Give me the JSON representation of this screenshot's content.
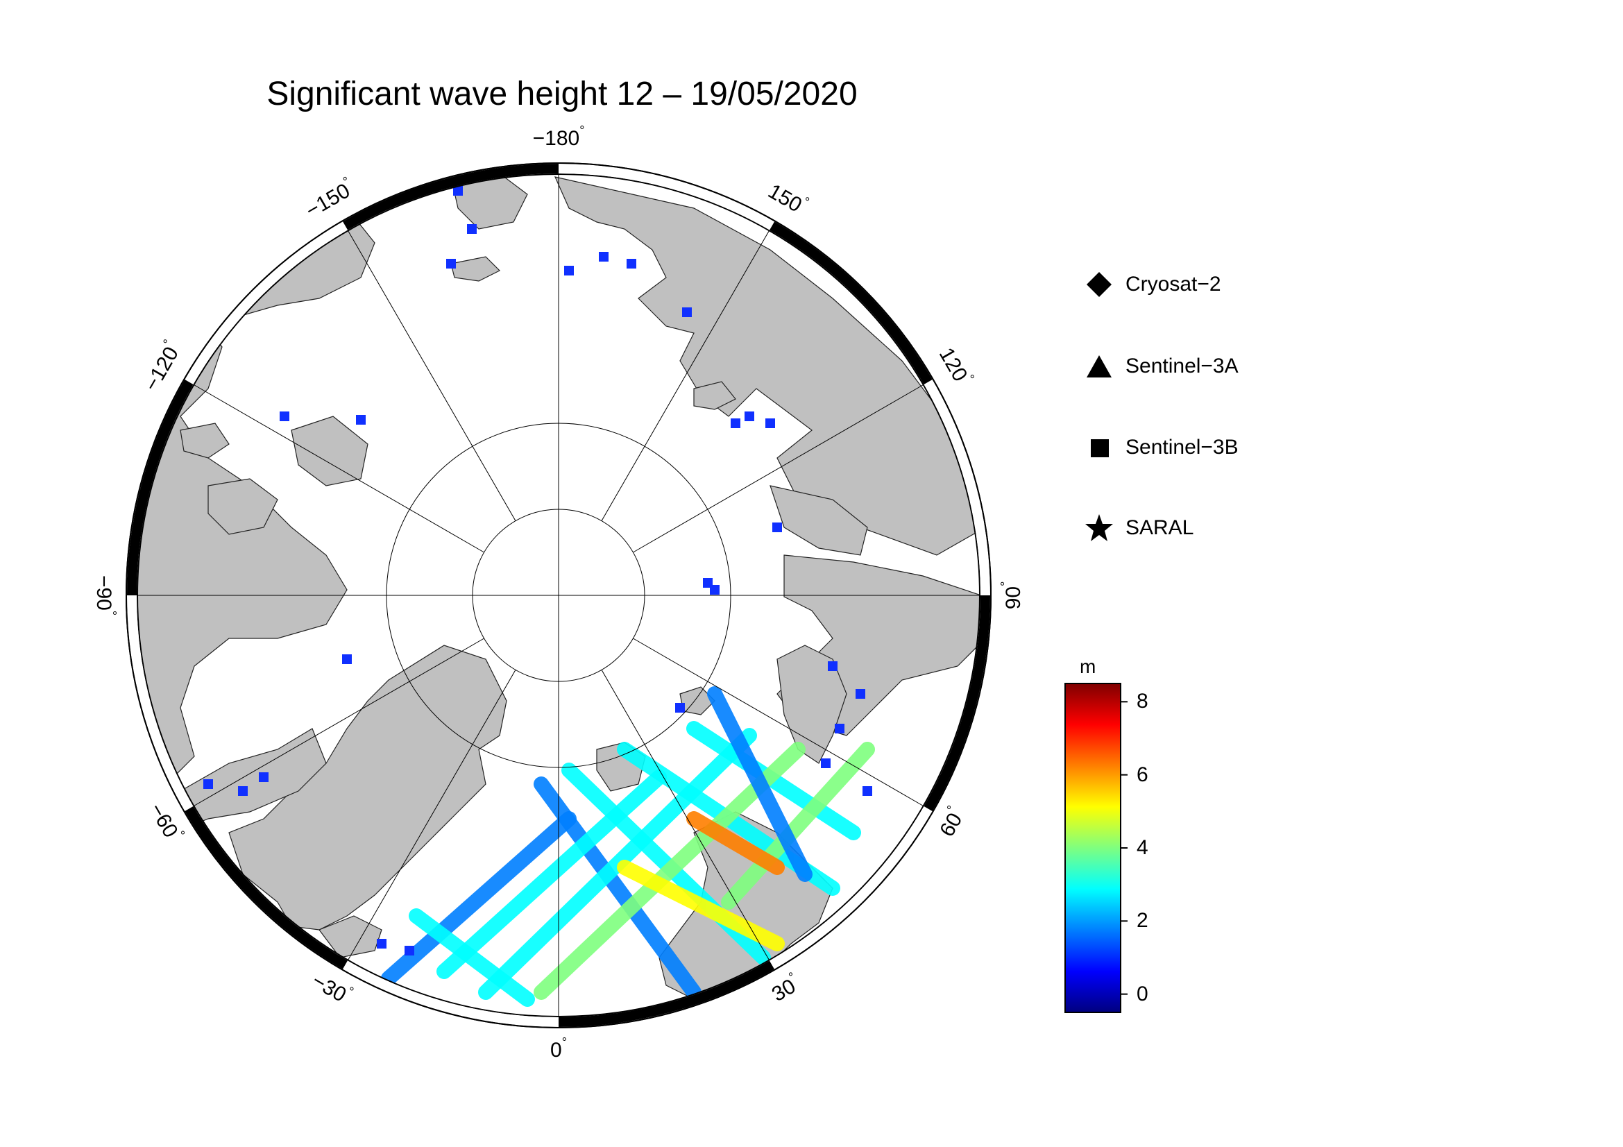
{
  "title": "Significant wave height 12 – 19/05/2020",
  "map": {
    "projection": "north-polar-stereographic",
    "longitude_labels": [
      {
        "lon": 180,
        "text": "−180",
        "deg": "°"
      },
      {
        "lon": 150,
        "text": "150",
        "deg": "°"
      },
      {
        "lon": 120,
        "text": "120",
        "deg": "°"
      },
      {
        "lon": 90,
        "text": "90",
        "deg": "°"
      },
      {
        "lon": 60,
        "text": "60",
        "deg": "°"
      },
      {
        "lon": 30,
        "text": "30",
        "deg": "°"
      },
      {
        "lon": 0,
        "text": "0",
        "deg": "°"
      },
      {
        "lon": -30,
        "text": "−30",
        "deg": "°"
      },
      {
        "lon": -60,
        "text": "−60",
        "deg": "°"
      },
      {
        "lon": -90,
        "text": "−90",
        "deg": "°"
      },
      {
        "lon": -120,
        "text": "−120",
        "deg": "°"
      },
      {
        "lon": -150,
        "text": "−150",
        "deg": "°"
      }
    ],
    "land_color": "#c0c0c0",
    "ocean_color": "#ffffff"
  },
  "legend": [
    {
      "symbol": "diamond",
      "label": "Cryosat−2"
    },
    {
      "symbol": "triangle",
      "label": "Sentinel−3A"
    },
    {
      "symbol": "square",
      "label": "Sentinel−3B"
    },
    {
      "symbol": "star",
      "label": "SARAL"
    }
  ],
  "colorbar": {
    "unit": "m",
    "min": -0.5,
    "max": 8.5,
    "ticks": [
      0,
      2,
      4,
      6,
      8
    ],
    "tick_labels": [
      "0",
      "2",
      "4",
      "6",
      "8"
    ],
    "colors": [
      "#00007f",
      "#0000ff",
      "#007fff",
      "#00ffff",
      "#7fff7f",
      "#ffff00",
      "#ff7f00",
      "#ff0000",
      "#7f0000"
    ]
  }
}
